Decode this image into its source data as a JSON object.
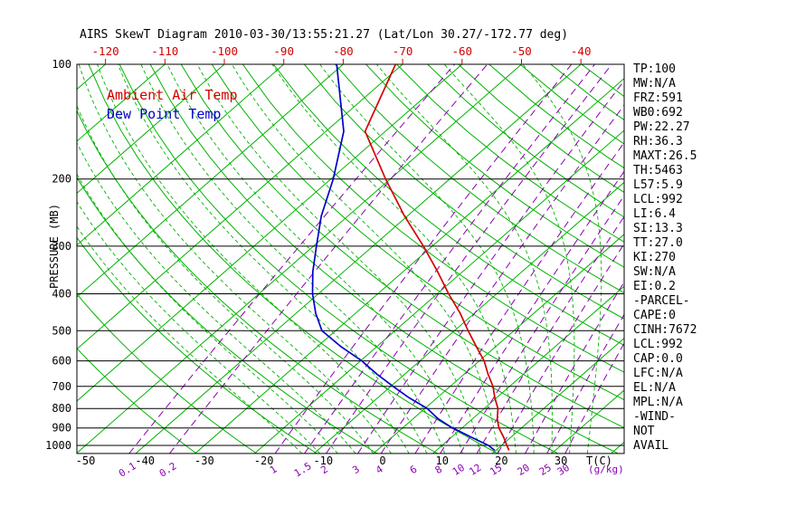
{
  "title": "AIRS SkewT Diagram 2010-03-30/13:55:21.27 (Lat/Lon 30.27/-172.77 deg)",
  "legend": {
    "ambient": "Ambient Air Temp",
    "dewpoint": "Dew Point Temp"
  },
  "axes": {
    "pressure_label": "PRESSURE (MB)",
    "pressure_ticks": [
      100,
      200,
      300,
      400,
      500,
      600,
      700,
      800,
      900,
      1000
    ],
    "top_temp_ticks": [
      -120,
      -110,
      -100,
      -90,
      -80,
      -70,
      -60,
      -50,
      -40
    ],
    "bottom_temp_ticks": [
      -50,
      -40,
      -30,
      -20,
      -10,
      0,
      10,
      20,
      30
    ],
    "bottom_temp_unit": "T(C)",
    "mixing_ratio_unit": "(g/kg)"
  },
  "stats_panel": [
    "TP:100",
    "MW:N/A",
    "FRZ:591",
    "WB0:692",
    "PW:22.27",
    "RH:36.3",
    "MAXT:26.5",
    "TH:5463",
    "L57:5.9",
    "LCL:992",
    "LI:6.4",
    "SI:13.3",
    "TT:27.0",
    "KI:270",
    "SW:N/A",
    "EI:0.2",
    "-PARCEL-",
    "CAPE:0",
    "CINH:7672",
    "LCL:992",
    "CAP:0.0",
    "LFC:N/A",
    "EL:N/A",
    "MPL:N/A",
    "-WIND-",
    "NOT",
    "AVAIL"
  ],
  "colors": {
    "red": "#d40000",
    "blue": "#0000cd",
    "green": "#00b300",
    "purple": "#8a00b0",
    "black": "#000000",
    "background": "#ffffff"
  },
  "chart_data": {
    "type": "line",
    "title": "AIRS SkewT Diagram 2010-03-30/13:55:21.27 (Lat/Lon 30.27/-172.77 deg)",
    "xlabel": "T(C)",
    "ylabel": "PRESSURE (MB)",
    "pressure_range_mb": [
      100,
      1050
    ],
    "skew": "45deg-right",
    "grid_on": true,
    "legend_position": "top-left",
    "series": [
      {
        "name": "Ambient Air Temp",
        "color_key": "red",
        "points_p_t": [
          [
            1030,
            22.2
          ],
          [
            1000,
            20.9
          ],
          [
            950,
            18.7
          ],
          [
            900,
            16.2
          ],
          [
            850,
            14.1
          ],
          [
            800,
            12.3
          ],
          [
            750,
            9.7
          ],
          [
            700,
            7.2
          ],
          [
            650,
            4.0
          ],
          [
            600,
            0.8
          ],
          [
            550,
            -3.3
          ],
          [
            500,
            -7.7
          ],
          [
            450,
            -12.4
          ],
          [
            400,
            -18.1
          ],
          [
            350,
            -24.2
          ],
          [
            300,
            -31.5
          ],
          [
            250,
            -40.5
          ],
          [
            200,
            -50.8
          ],
          [
            150,
            -63.4
          ],
          [
            100,
            -71.2
          ]
        ]
      },
      {
        "name": "Dew Point Temp",
        "color_key": "blue",
        "points_p_t": [
          [
            1030,
            19.8
          ],
          [
            1000,
            17.8
          ],
          [
            950,
            13.2
          ],
          [
            900,
            8.4
          ],
          [
            850,
            4.1
          ],
          [
            800,
            0.4
          ],
          [
            750,
            -4.7
          ],
          [
            700,
            -9.6
          ],
          [
            650,
            -14.7
          ],
          [
            600,
            -19.8
          ],
          [
            550,
            -26.1
          ],
          [
            500,
            -32.3
          ],
          [
            450,
            -36.7
          ],
          [
            400,
            -41.0
          ],
          [
            350,
            -45.2
          ],
          [
            300,
            -49.5
          ],
          [
            250,
            -54.5
          ],
          [
            200,
            -59.6
          ],
          [
            150,
            -67.0
          ],
          [
            100,
            -81.1
          ]
        ]
      }
    ],
    "grid": {
      "isotherms_c": {
        "from": -130,
        "to": 40,
        "step": 10
      },
      "dry_adiabats_k": {
        "from": 240,
        "to": 450,
        "step": 10
      },
      "moist_adiabats_c": {
        "from": -12,
        "to": 36,
        "step": 3
      },
      "mixing_ratio_gkg": [
        0.1,
        0.2,
        1,
        1.5,
        2,
        3,
        4,
        6,
        8,
        10,
        12,
        15,
        20,
        25,
        30
      ]
    }
  }
}
